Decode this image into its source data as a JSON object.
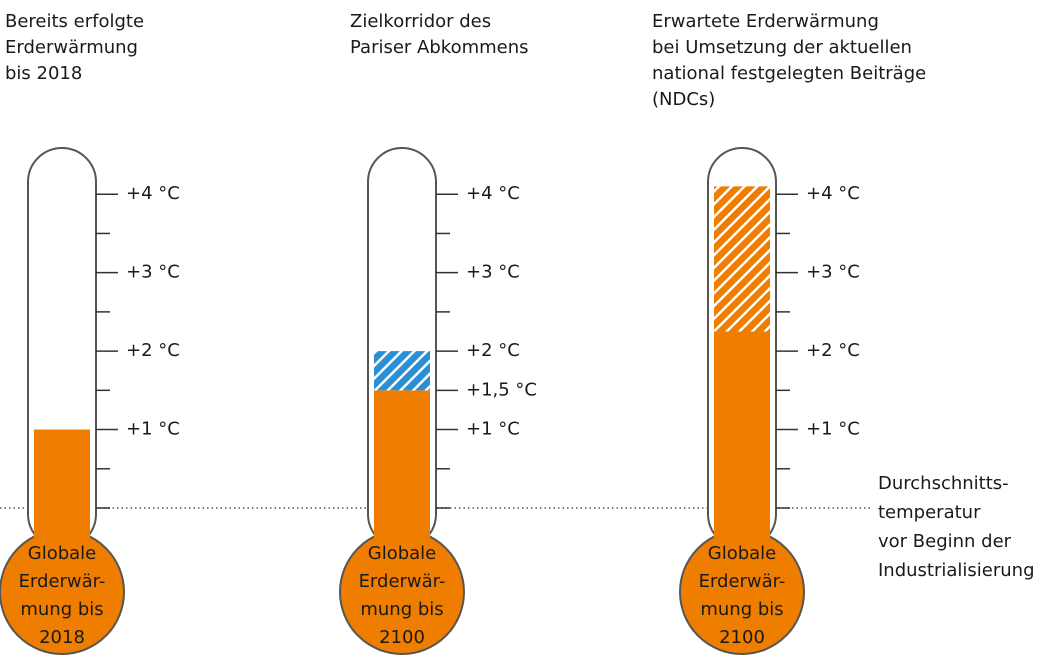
{
  "chart_data": [
    {
      "type": "thermometer",
      "title": [
        "Bereits erfolgte",
        "Erderwärmung",
        "bis 2018"
      ],
      "bulb_label": [
        "Globale",
        "Erderwär-",
        "mung bis",
        "2018"
      ],
      "ylim": [
        0,
        4.5
      ],
      "yticks": [
        {
          "value": 1,
          "label": "+1 °C"
        },
        {
          "value": 2,
          "label": "+2 °C"
        },
        {
          "value": 3,
          "label": "+3 °C"
        },
        {
          "value": 4,
          "label": "+4 °C"
        }
      ],
      "minor_ticks": [
        0,
        0.5,
        1.5,
        2.5,
        3.5
      ],
      "segments": [
        {
          "value": 1,
          "color": "#ee7d00",
          "hatch": false
        }
      ]
    },
    {
      "type": "thermometer",
      "title": [
        "Zielkorridor des",
        "Pariser Abkommens"
      ],
      "bulb_label": [
        "Globale",
        "Erderwär-",
        "mung bis",
        "2100"
      ],
      "ylim": [
        0,
        4.5
      ],
      "yticks": [
        {
          "value": 1,
          "label": "+1 °C"
        },
        {
          "value": 1.5,
          "label": "+1,5 °C"
        },
        {
          "value": 2,
          "label": "+2 °C"
        },
        {
          "value": 3,
          "label": "+3 °C"
        },
        {
          "value": 4,
          "label": "+4 °C"
        }
      ],
      "minor_ticks": [
        0,
        0.5,
        2.5,
        3.5
      ],
      "segments": [
        {
          "value": 1.5,
          "color": "#ee7d00",
          "hatch": false
        },
        {
          "value": 0.5,
          "color": "#2b8fd6",
          "hatch": true
        }
      ]
    },
    {
      "type": "thermometer",
      "title": [
        "Erwartete Erderwärmung",
        "bei Umsetzung der aktuellen",
        "national festgelegten Beiträge",
        "(NDCs)"
      ],
      "bulb_label": [
        "Globale",
        "Erderwär-",
        "mung bis",
        "2100"
      ],
      "ylim": [
        0,
        4.5
      ],
      "yticks": [
        {
          "value": 1,
          "label": "+1 °C"
        },
        {
          "value": 2,
          "label": "+2 °C"
        },
        {
          "value": 3,
          "label": "+3 °C"
        },
        {
          "value": 4,
          "label": "+4 °C"
        }
      ],
      "minor_ticks": [
        0,
        0.5,
        1.5,
        2.5,
        3.5
      ],
      "segments": [
        {
          "value": 2.25,
          "color": "#ee7d00",
          "hatch": false
        },
        {
          "value": 1.85,
          "color": "#ee7d00",
          "hatch": true
        }
      ]
    }
  ],
  "annotation": [
    "Durchschnitts-",
    "temperatur",
    "vor Beginn der",
    "Industrialisierung"
  ]
}
